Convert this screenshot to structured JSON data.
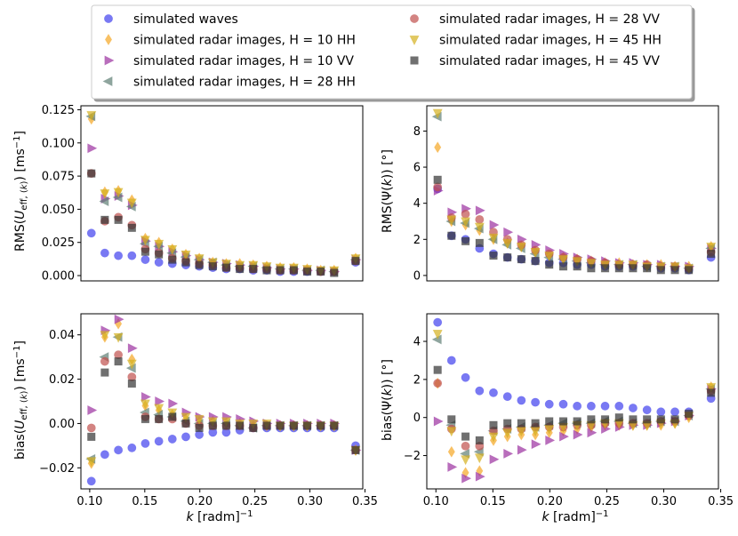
{
  "legend": [
    {
      "label": "simulated waves",
      "marker": "circle",
      "color": "#4040ee"
    },
    {
      "label": "simulated radar images, H = 10 HH",
      "marker": "diamond",
      "color": "#f5a623"
    },
    {
      "label": "simulated radar images, H = 10 VV",
      "marker": "triangle-right",
      "color": "#9b30a0"
    },
    {
      "label": "simulated radar images, H = 28 HH",
      "marker": "triangle-left",
      "color": "#5f7f75"
    },
    {
      "label": "simulated radar images, H = 28 VV",
      "marker": "circle",
      "color": "#c0504d"
    },
    {
      "label": "simulated radar images, H = 45 HH",
      "marker": "triangle-down",
      "color": "#d4b020"
    },
    {
      "label": "simulated radar images, H = 45 VV",
      "marker": "square",
      "color": "#333333"
    }
  ],
  "chart_data": [
    {
      "type": "scatter",
      "id": "rms-u",
      "ylabel": "RMS(U_eff,(k)) [ms⁻¹]",
      "xlabel": "",
      "xlim": [
        0.092,
        0.348
      ],
      "ylim": [
        -0.004,
        0.128
      ],
      "xticks": [],
      "yticks": [
        0.0,
        0.025,
        0.05,
        0.075,
        0.1,
        0.125
      ],
      "ytick_labels": [
        "0.000",
        "0.025",
        "0.050",
        "0.075",
        "0.100",
        "0.125"
      ],
      "x": [
        0.1015,
        0.1137,
        0.126,
        0.1383,
        0.1505,
        0.1628,
        0.175,
        0.1873,
        0.1995,
        0.2118,
        0.224,
        0.2363,
        0.2485,
        0.2608,
        0.273,
        0.2853,
        0.2975,
        0.3098,
        0.322,
        0.3415
      ],
      "series": [
        {
          "name": "simulated waves",
          "values": [
            0.032,
            0.017,
            0.015,
            0.015,
            0.012,
            0.01,
            0.009,
            0.008,
            0.007,
            0.006,
            0.005,
            0.005,
            0.004,
            0.004,
            0.003,
            0.003,
            0.003,
            0.003,
            0.003,
            0.01
          ]
        },
        {
          "name": "simulated radar images, H = 10 HH",
          "values": [
            0.118,
            0.063,
            0.064,
            0.057,
            0.028,
            0.025,
            0.02,
            0.016,
            0.013,
            0.01,
            0.009,
            0.009,
            0.008,
            0.007,
            0.006,
            0.006,
            0.005,
            0.004,
            0.004,
            0.013
          ]
        },
        {
          "name": "simulated radar images, H = 10 VV",
          "values": [
            0.096,
            0.058,
            0.06,
            0.053,
            0.026,
            0.022,
            0.018,
            0.015,
            0.012,
            0.01,
            0.009,
            0.008,
            0.007,
            0.006,
            0.005,
            0.005,
            0.004,
            0.004,
            0.003,
            0.012
          ]
        },
        {
          "name": "simulated radar images, H = 28 HH",
          "values": [
            0.12,
            0.056,
            0.059,
            0.052,
            0.024,
            0.022,
            0.017,
            0.014,
            0.012,
            0.01,
            0.008,
            0.007,
            0.007,
            0.006,
            0.005,
            0.005,
            0.004,
            0.004,
            0.003,
            0.012
          ]
        },
        {
          "name": "simulated radar images, H = 28 VV",
          "values": [
            0.077,
            0.041,
            0.044,
            0.038,
            0.02,
            0.017,
            0.013,
            0.011,
            0.009,
            0.008,
            0.006,
            0.006,
            0.005,
            0.005,
            0.004,
            0.004,
            0.004,
            0.003,
            0.003,
            0.011
          ]
        },
        {
          "name": "simulated radar images, H = 45 HH",
          "values": [
            0.121,
            0.062,
            0.063,
            0.055,
            0.027,
            0.024,
            0.02,
            0.016,
            0.013,
            0.01,
            0.009,
            0.008,
            0.008,
            0.007,
            0.006,
            0.006,
            0.005,
            0.004,
            0.004,
            0.013
          ]
        },
        {
          "name": "simulated radar images, H = 45 VV",
          "values": [
            0.077,
            0.042,
            0.042,
            0.036,
            0.018,
            0.016,
            0.012,
            0.01,
            0.008,
            0.007,
            0.006,
            0.005,
            0.005,
            0.004,
            0.004,
            0.004,
            0.003,
            0.003,
            0.002,
            0.011
          ]
        }
      ]
    },
    {
      "type": "scatter",
      "id": "rms-psi",
      "ylabel": "RMS(Ψ(k)) [°]",
      "xlabel": "",
      "xlim": [
        0.092,
        0.348
      ],
      "ylim": [
        -0.3,
        9.4
      ],
      "xticks": [],
      "yticks": [
        0,
        2,
        4,
        6,
        8
      ],
      "ytick_labels": [
        "0",
        "2",
        "4",
        "6",
        "8"
      ],
      "x": [
        0.1015,
        0.1137,
        0.126,
        0.1383,
        0.1505,
        0.1628,
        0.175,
        0.1873,
        0.1995,
        0.2118,
        0.224,
        0.2363,
        0.2485,
        0.2608,
        0.273,
        0.2853,
        0.2975,
        0.3098,
        0.322,
        0.3415
      ],
      "series": [
        {
          "name": "simulated waves",
          "values": [
            4.8,
            2.2,
            2.0,
            1.5,
            1.2,
            1.0,
            0.9,
            0.8,
            0.7,
            0.7,
            0.6,
            0.6,
            0.5,
            0.5,
            0.5,
            0.5,
            0.4,
            0.4,
            0.3,
            1.0
          ]
        },
        {
          "name": "simulated radar images, H = 10 HH",
          "values": [
            7.1,
            3.0,
            2.8,
            2.5,
            2.0,
            1.8,
            1.6,
            1.3,
            1.1,
            1.0,
            0.9,
            0.8,
            0.7,
            0.7,
            0.6,
            0.6,
            0.6,
            0.5,
            0.5,
            1.6
          ]
        },
        {
          "name": "simulated radar images, H = 10 VV",
          "values": [
            4.7,
            3.5,
            3.7,
            3.6,
            2.8,
            2.4,
            2.0,
            1.7,
            1.4,
            1.2,
            1.0,
            0.9,
            0.8,
            0.7,
            0.7,
            0.6,
            0.6,
            0.5,
            0.5,
            1.5
          ]
        },
        {
          "name": "simulated radar images, H = 28 HH",
          "values": [
            8.8,
            3.0,
            2.9,
            2.6,
            2.0,
            1.7,
            1.5,
            1.2,
            1.0,
            0.9,
            0.8,
            0.7,
            0.6,
            0.6,
            0.6,
            0.5,
            0.5,
            0.5,
            0.4,
            1.5
          ]
        },
        {
          "name": "simulated radar images, H = 28 VV",
          "values": [
            4.9,
            3.2,
            3.4,
            3.1,
            2.4,
            2.0,
            1.7,
            1.4,
            1.2,
            1.0,
            0.9,
            0.8,
            0.7,
            0.6,
            0.6,
            0.6,
            0.5,
            0.5,
            0.4,
            1.3
          ]
        },
        {
          "name": "simulated radar images, H = 45 HH",
          "values": [
            9.0,
            3.1,
            3.0,
            2.7,
            2.1,
            1.8,
            1.6,
            1.3,
            1.1,
            0.9,
            0.8,
            0.7,
            0.6,
            0.6,
            0.6,
            0.5,
            0.5,
            0.5,
            0.4,
            1.6
          ]
        },
        {
          "name": "simulated radar images, H = 45 VV",
          "values": [
            5.3,
            2.2,
            1.9,
            1.8,
            1.1,
            1.0,
            0.9,
            0.8,
            0.6,
            0.5,
            0.5,
            0.4,
            0.4,
            0.4,
            0.4,
            0.4,
            0.3,
            0.3,
            0.3,
            1.2
          ]
        }
      ]
    },
    {
      "type": "scatter",
      "id": "bias-u",
      "ylabel": "bias(U_eff,(k)) [ms⁻¹]",
      "xlabel": "k [radm]⁻¹",
      "xlim": [
        0.092,
        0.348
      ],
      "ylim": [
        -0.0295,
        0.0495
      ],
      "xticks": [
        0.1,
        0.15,
        0.2,
        0.25,
        0.3,
        0.35
      ],
      "xtick_labels": [
        "0.10",
        "0.15",
        "0.20",
        "0.25",
        "0.30",
        "0.35"
      ],
      "yticks": [
        -0.02,
        0.0,
        0.02,
        0.04
      ],
      "ytick_labels": [
        "−0.02",
        "0.00",
        "0.02",
        "0.04"
      ],
      "x": [
        0.1015,
        0.1137,
        0.126,
        0.1383,
        0.1505,
        0.1628,
        0.175,
        0.1873,
        0.1995,
        0.2118,
        0.224,
        0.2363,
        0.2485,
        0.2608,
        0.273,
        0.2853,
        0.2975,
        0.3098,
        0.322,
        0.3415
      ],
      "series": [
        {
          "name": "simulated waves",
          "values": [
            -0.026,
            -0.014,
            -0.012,
            -0.011,
            -0.009,
            -0.008,
            -0.007,
            -0.006,
            -0.005,
            -0.004,
            -0.004,
            -0.003,
            -0.002,
            -0.002,
            -0.002,
            -0.002,
            -0.002,
            -0.002,
            -0.002,
            -0.01
          ]
        },
        {
          "name": "simulated radar images, H = 10 HH",
          "values": [
            -0.018,
            0.039,
            0.045,
            0.029,
            0.008,
            0.006,
            0.004,
            0.002,
            0.001,
            0.001,
            0.0,
            0.0,
            -0.001,
            -0.001,
            -0.001,
            -0.001,
            -0.001,
            -0.001,
            -0.001,
            -0.012
          ]
        },
        {
          "name": "simulated radar images, H = 10 VV",
          "values": [
            0.006,
            0.042,
            0.047,
            0.034,
            0.012,
            0.01,
            0.009,
            0.005,
            0.003,
            0.003,
            0.003,
            0.002,
            0.001,
            0.0,
            0.0,
            0.0,
            0.0,
            0.0,
            0.0,
            -0.012
          ]
        },
        {
          "name": "simulated radar images, H = 28 HH",
          "values": [
            -0.016,
            0.03,
            0.039,
            0.025,
            0.005,
            0.004,
            0.003,
            0.001,
            0.0,
            0.0,
            0.0,
            -0.001,
            -0.002,
            -0.001,
            -0.001,
            -0.001,
            -0.001,
            -0.001,
            -0.001,
            -0.012
          ]
        },
        {
          "name": "simulated radar images, H = 28 VV",
          "values": [
            -0.002,
            0.028,
            0.031,
            0.021,
            0.003,
            0.002,
            0.002,
            0.0,
            -0.001,
            -0.001,
            -0.001,
            -0.001,
            -0.002,
            -0.001,
            -0.001,
            -0.001,
            -0.001,
            -0.001,
            -0.001,
            -0.012
          ]
        },
        {
          "name": "simulated radar images, H = 45 HH",
          "values": [
            -0.017,
            0.04,
            0.039,
            0.027,
            0.009,
            0.007,
            0.005,
            0.003,
            0.002,
            0.001,
            0.001,
            0.0,
            0.0,
            0.0,
            -0.001,
            -0.001,
            -0.001,
            -0.001,
            -0.001,
            -0.012
          ]
        },
        {
          "name": "simulated radar images, H = 45 VV",
          "values": [
            -0.006,
            0.023,
            0.028,
            0.018,
            0.002,
            0.002,
            0.003,
            0.0,
            -0.002,
            -0.001,
            -0.001,
            -0.001,
            -0.002,
            -0.001,
            -0.001,
            -0.001,
            -0.001,
            -0.001,
            -0.001,
            -0.012
          ]
        }
      ]
    },
    {
      "type": "scatter",
      "id": "bias-psi",
      "ylabel": "bias(Ψ(k)) [°]",
      "xlabel": "k [radm]⁻¹",
      "xlim": [
        0.092,
        0.348
      ],
      "ylim": [
        -3.75,
        5.45
      ],
      "xticks": [
        0.1,
        0.15,
        0.2,
        0.25,
        0.3,
        0.35
      ],
      "xtick_labels": [
        "0.10",
        "0.15",
        "0.20",
        "0.25",
        "0.30",
        "0.35"
      ],
      "yticks": [
        -2,
        0,
        2,
        4
      ],
      "ytick_labels": [
        "−2",
        "0",
        "2",
        "4"
      ],
      "x": [
        0.1015,
        0.1137,
        0.126,
        0.1383,
        0.1505,
        0.1628,
        0.175,
        0.1873,
        0.1995,
        0.2118,
        0.224,
        0.2363,
        0.2485,
        0.2608,
        0.273,
        0.2853,
        0.2975,
        0.3098,
        0.322,
        0.3415
      ],
      "series": [
        {
          "name": "simulated waves",
          "values": [
            5.0,
            3.0,
            2.1,
            1.4,
            1.3,
            1.1,
            0.9,
            0.8,
            0.7,
            0.7,
            0.6,
            0.6,
            0.6,
            0.6,
            0.5,
            0.4,
            0.3,
            0.3,
            0.3,
            1.0
          ]
        },
        {
          "name": "simulated radar images, H = 10 HH",
          "values": [
            1.8,
            -1.8,
            -2.9,
            -2.8,
            -1.2,
            -1.0,
            -0.9,
            -0.9,
            -0.8,
            -0.7,
            -0.6,
            -0.5,
            -0.4,
            -0.4,
            -0.4,
            -0.4,
            -0.4,
            -0.3,
            0.0,
            1.6
          ]
        },
        {
          "name": "simulated radar images, H = 10 VV",
          "values": [
            -0.2,
            -2.6,
            -3.2,
            -3.1,
            -2.2,
            -1.9,
            -1.7,
            -1.4,
            -1.2,
            -1.0,
            -0.9,
            -0.8,
            -0.6,
            -0.5,
            -0.4,
            -0.4,
            -0.3,
            -0.2,
            0.1,
            1.5
          ]
        },
        {
          "name": "simulated radar images, H = 28 HH",
          "values": [
            4.1,
            -0.4,
            -1.9,
            -1.8,
            -0.7,
            -0.6,
            -0.5,
            -0.5,
            -0.4,
            -0.3,
            -0.3,
            -0.3,
            -0.2,
            -0.2,
            -0.3,
            -0.3,
            -0.2,
            -0.2,
            0.1,
            1.5
          ]
        },
        {
          "name": "simulated radar images, H = 28 VV",
          "values": [
            1.8,
            -0.6,
            -1.5,
            -1.5,
            -0.7,
            -0.6,
            -0.6,
            -0.5,
            -0.5,
            -0.5,
            -0.4,
            -0.4,
            -0.3,
            -0.3,
            -0.3,
            -0.3,
            -0.2,
            -0.2,
            0.1,
            1.4
          ]
        },
        {
          "name": "simulated radar images, H = 45 HH",
          "values": [
            4.4,
            -0.7,
            -2.2,
            -2.1,
            -1.0,
            -0.8,
            -0.7,
            -0.7,
            -0.6,
            -0.5,
            -0.4,
            -0.4,
            -0.3,
            -0.3,
            -0.4,
            -0.4,
            -0.3,
            -0.3,
            0.1,
            1.6
          ]
        },
        {
          "name": "simulated radar images, H = 45 VV",
          "values": [
            2.5,
            -0.1,
            -1.0,
            -1.2,
            -0.4,
            -0.3,
            -0.3,
            -0.3,
            -0.2,
            -0.2,
            -0.2,
            -0.1,
            -0.1,
            0.0,
            -0.1,
            -0.1,
            -0.1,
            -0.1,
            0.2,
            1.3
          ]
        }
      ]
    }
  ]
}
